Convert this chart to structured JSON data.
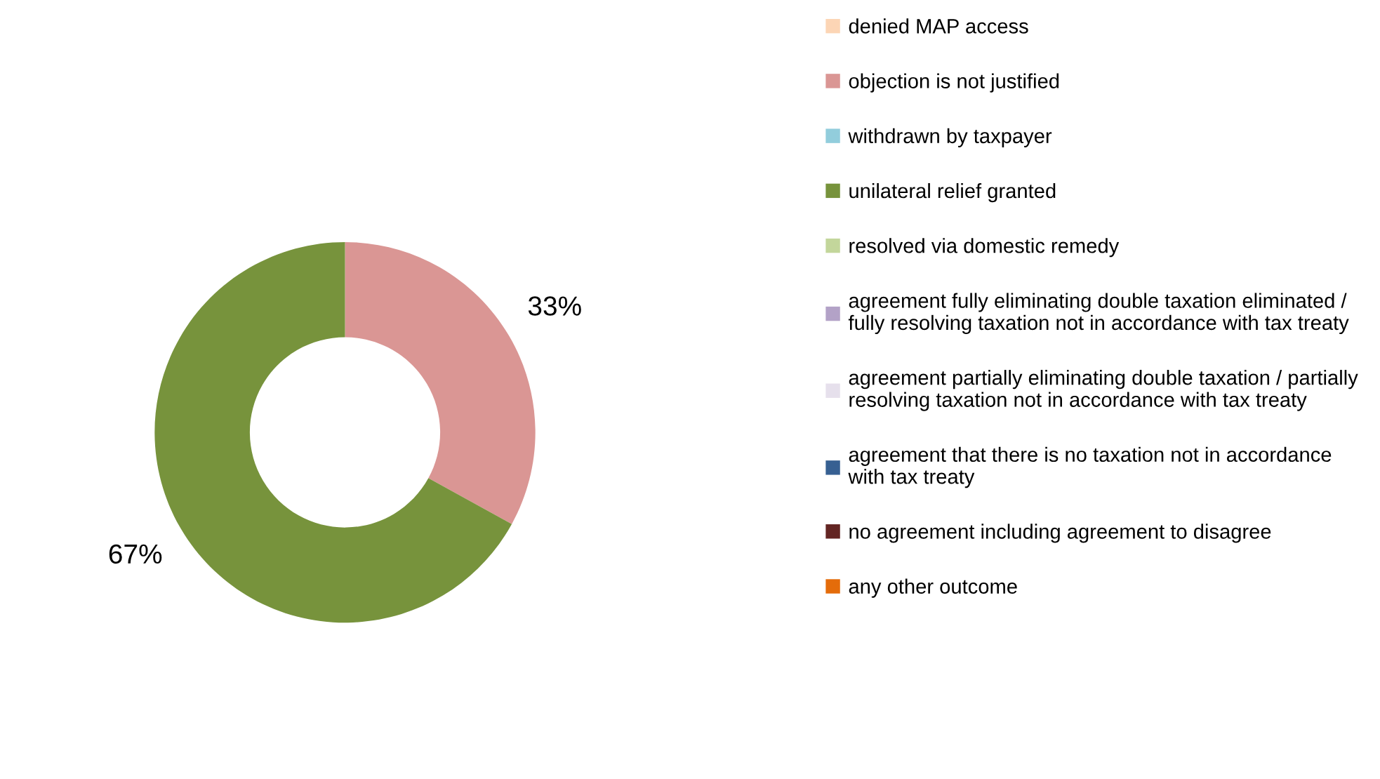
{
  "chart_data": {
    "type": "donut",
    "categories": [
      "denied MAP access",
      "objection is not justified",
      "withdrawn by taxpayer",
      "unilateral relief granted",
      "resolved via domestic remedy",
      "agreement fully eliminating double taxation eliminated /\nfully resolving taxation not in accordance with tax treaty",
      "agreement partially eliminating double taxation / partially\nresolving taxation not in accordance with tax treaty",
      "agreement that there is no taxation not in accordance\nwith tax treaty",
      "no agreement including agreement to disagree",
      "any other outcome"
    ],
    "values": [
      0,
      33,
      0,
      67,
      0,
      0,
      0,
      0,
      0,
      0
    ],
    "colors": [
      "#fcd5b5",
      "#da9694",
      "#92cddc",
      "#77933c",
      "#c3d69b",
      "#b3a2c7",
      "#e6e0ec",
      "#376092",
      "#632523",
      "#e46c0a"
    ],
    "value_labels": [
      null,
      "33%",
      null,
      "67%",
      null,
      null,
      null,
      null,
      null,
      null
    ],
    "legend": "right"
  }
}
